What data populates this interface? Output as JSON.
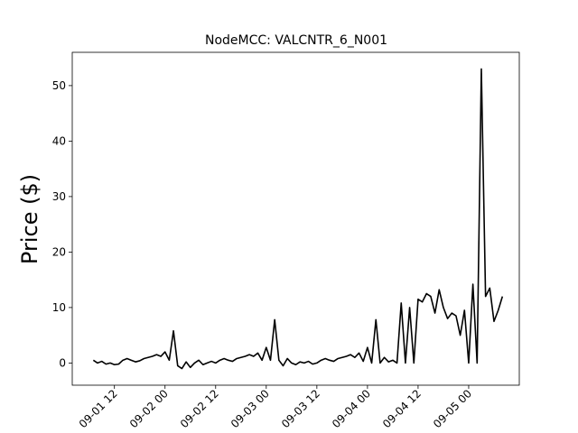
{
  "chart_data": {
    "type": "line",
    "title": "NodeMCC: VALCNTR_6_N001",
    "y_label": "Price ($)",
    "x": [
      "09-01 07",
      "09-01 08",
      "09-01 09",
      "09-01 10",
      "09-01 11",
      "09-01 12",
      "09-01 13",
      "09-01 14",
      "09-01 15",
      "09-01 16",
      "09-01 17",
      "09-01 18",
      "09-01 19",
      "09-01 20",
      "09-01 21",
      "09-01 22",
      "09-01 23",
      "09-02 00",
      "09-02 01",
      "09-02 02",
      "09-02 03",
      "09-02 04",
      "09-02 05",
      "09-02 06",
      "09-02 07",
      "09-02 08",
      "09-02 09",
      "09-02 10",
      "09-02 11",
      "09-02 12",
      "09-02 13",
      "09-02 14",
      "09-02 15",
      "09-02 16",
      "09-02 17",
      "09-02 18",
      "09-02 19",
      "09-02 20",
      "09-02 21",
      "09-02 22",
      "09-02 23",
      "09-03 00",
      "09-03 01",
      "09-03 02",
      "09-03 03",
      "09-03 04",
      "09-03 05",
      "09-03 06",
      "09-03 07",
      "09-03 08",
      "09-03 09",
      "09-03 10",
      "09-03 11",
      "09-03 12",
      "09-03 13",
      "09-03 14",
      "09-03 15",
      "09-03 16",
      "09-03 17",
      "09-03 18",
      "09-03 19",
      "09-03 20",
      "09-03 21",
      "09-03 22",
      "09-03 23",
      "09-04 00",
      "09-04 01",
      "09-04 02",
      "09-04 03",
      "09-04 04",
      "09-04 05",
      "09-04 06",
      "09-04 07",
      "09-04 08",
      "09-04 09",
      "09-04 10",
      "09-04 11",
      "09-04 12",
      "09-04 13",
      "09-04 14",
      "09-04 15",
      "09-04 16",
      "09-04 17",
      "09-04 18",
      "09-04 19",
      "09-04 20",
      "09-04 21",
      "09-04 22",
      "09-04 23",
      "09-05 00",
      "09-05 01",
      "09-05 02",
      "09-05 03",
      "09-05 04",
      "09-05 05",
      "09-05 06",
      "09-05 07",
      "09-05 08"
    ],
    "series": [
      {
        "name": "VALCNTR_6_N001",
        "color": "#000000",
        "values": [
          0.5,
          0,
          0.3,
          -0.2,
          0,
          -0.3,
          -0.2,
          0.5,
          0.8,
          0.5,
          0.2,
          0.4,
          0.8,
          1,
          1.2,
          1.5,
          1.2,
          2,
          0.5,
          5.8,
          -0.5,
          -1,
          0.2,
          -0.8,
          0,
          0.5,
          -0.3,
          0,
          0.3,
          0,
          0.5,
          0.8,
          0.5,
          0.3,
          0.8,
          1,
          1.2,
          1.5,
          1.2,
          1.8,
          0.5,
          2.8,
          0.5,
          7.8,
          0.5,
          -0.5,
          0.8,
          0,
          -0.3,
          0.2,
          0,
          0.3,
          -0.2,
          0,
          0.5,
          0.8,
          0.5,
          0.3,
          0.8,
          1,
          1.2,
          1.5,
          1,
          1.8,
          0.3,
          2.8,
          0,
          7.8,
          0,
          1,
          0.2,
          0.5,
          0,
          10.8,
          0,
          10,
          0,
          11.5,
          11,
          12.5,
          12,
          9,
          13.2,
          10,
          8,
          9,
          8.5,
          5,
          9.5,
          0,
          14.2,
          0,
          53,
          12,
          13.5,
          7.5,
          9.5,
          12
        ]
      }
    ],
    "xlim": [
      "09-01 02",
      "09-05 12"
    ],
    "xticks": [
      "09-01 12",
      "09-02 00",
      "09-02 12",
      "09-03 00",
      "09-03 12",
      "09-04 00",
      "09-04 12",
      "09-05 00"
    ],
    "ylim": [
      -4,
      56
    ],
    "yticks": [
      0,
      10,
      20,
      30,
      40,
      50
    ]
  }
}
